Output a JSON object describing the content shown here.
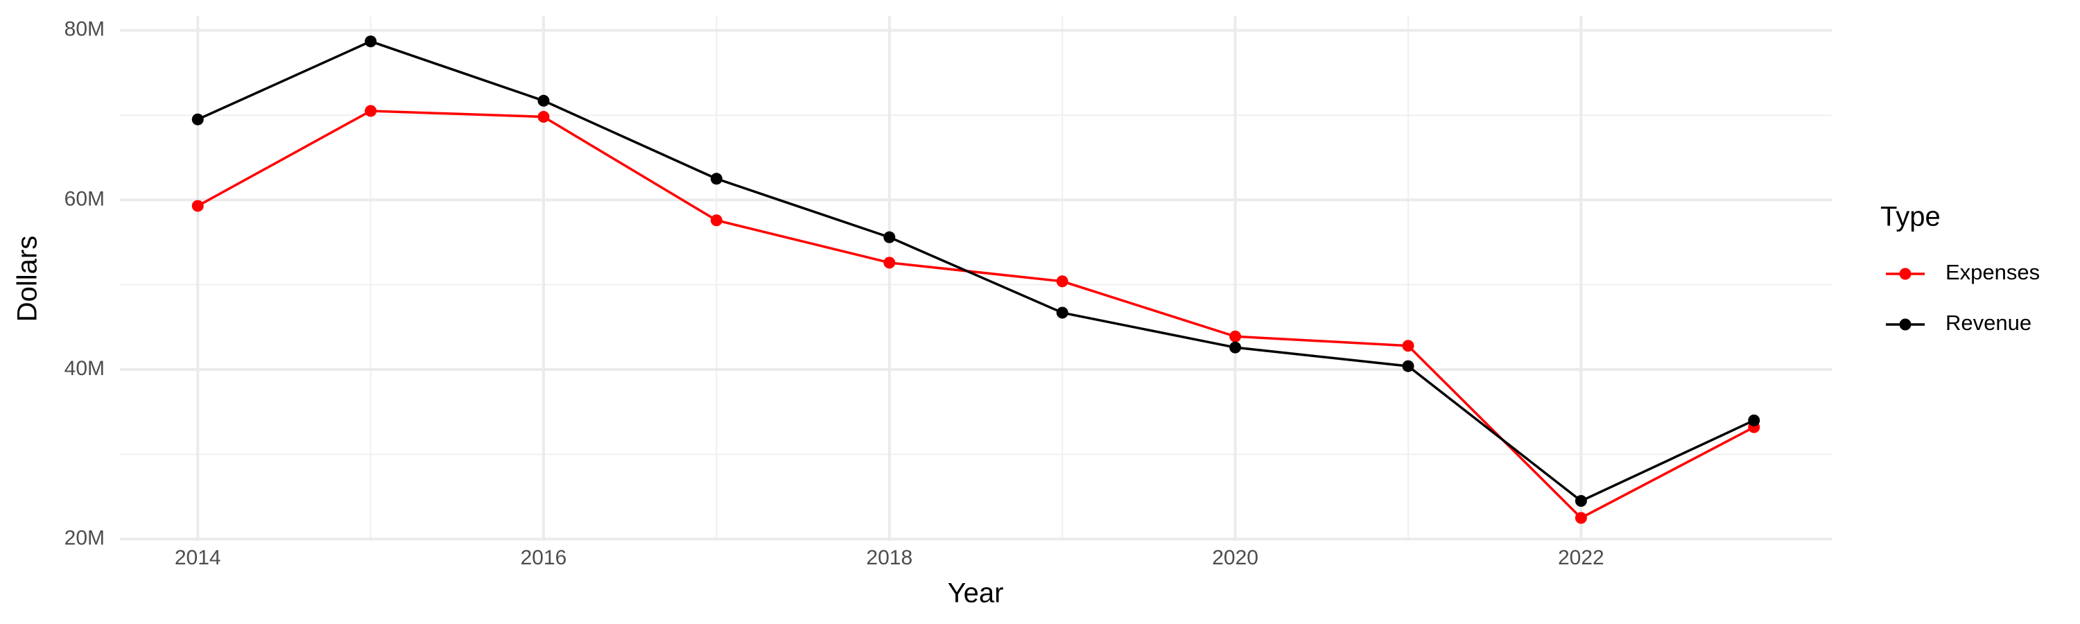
{
  "chart_data": {
    "type": "line",
    "x_label": "Year",
    "y_label": "Dollars",
    "legend_title": "Type",
    "legend_position": "right",
    "grid": true,
    "x": [
      2014,
      2015,
      2016,
      2017,
      2018,
      2019,
      2020,
      2021,
      2022,
      2023
    ],
    "series": [
      {
        "name": "Expenses",
        "color": "#ff0000",
        "values": [
          59300000,
          70500000,
          69800000,
          57600000,
          52600000,
          50400000,
          43900000,
          42800000,
          22500000,
          33200000
        ]
      },
      {
        "name": "Revenue",
        "color": "#000000",
        "values": [
          69500000,
          78700000,
          71700000,
          62500000,
          55600000,
          46700000,
          42600000,
          40400000,
          24500000,
          34000000
        ]
      }
    ],
    "xlim": [
      2013.55,
      2023.45
    ],
    "xticks": [
      2014,
      2016,
      2018,
      2020,
      2022
    ],
    "ylim": [
      19800000,
      81700000
    ],
    "yticks": [
      {
        "value": 20000000,
        "label": "20M"
      },
      {
        "value": 40000000,
        "label": "40M"
      },
      {
        "value": 60000000,
        "label": "60M"
      },
      {
        "value": 80000000,
        "label": "80M"
      }
    ]
  }
}
